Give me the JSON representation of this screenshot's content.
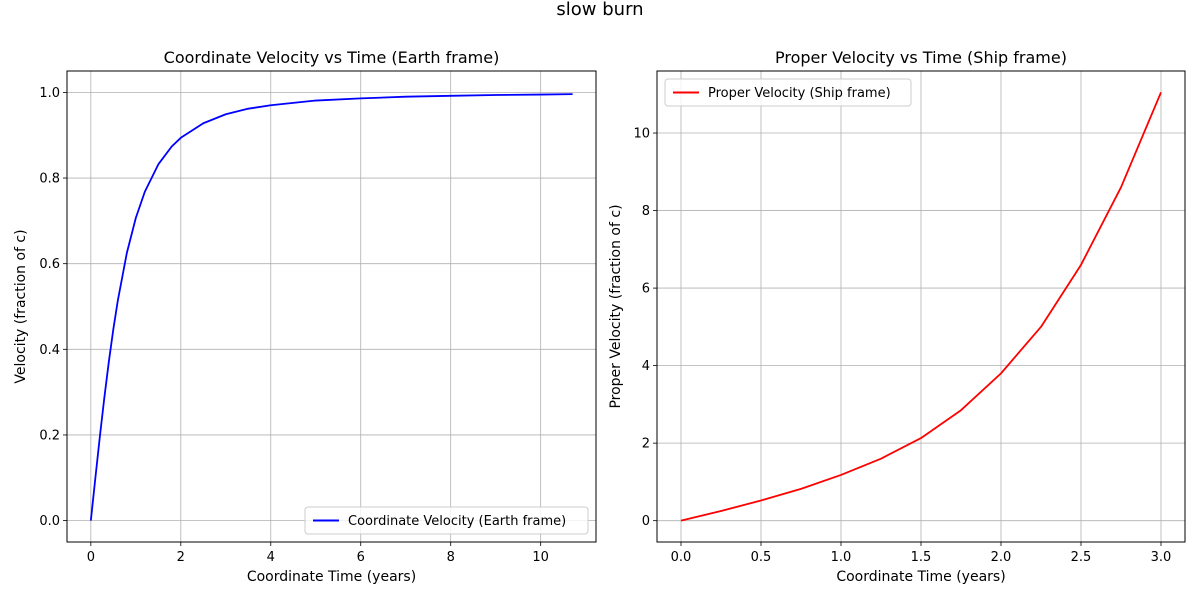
{
  "figure": {
    "title": "slow burn"
  },
  "chart_data": [
    {
      "type": "line",
      "title": "Coordinate Velocity vs Time (Earth frame)",
      "xlabel": "Coordinate Time (years)",
      "ylabel": "Velocity (fraction of c)",
      "xlim": [
        -0.53,
        11.23
      ],
      "ylim": [
        -0.05,
        1.05
      ],
      "xticks": [
        0,
        2,
        4,
        6,
        8,
        10
      ],
      "yticks": [
        0.0,
        0.2,
        0.4,
        0.6,
        0.8,
        1.0
      ],
      "xtick_labels": [
        "0",
        "2",
        "4",
        "6",
        "8",
        "10"
      ],
      "ytick_labels": [
        "0.0",
        "0.2",
        "0.4",
        "0.6",
        "0.8",
        "1.0"
      ],
      "grid": true,
      "legend_position": "lower-right",
      "series": [
        {
          "name": "Coordinate Velocity (Earth frame)",
          "color": "#0000ff",
          "x": [
            0,
            0.1,
            0.2,
            0.3,
            0.4,
            0.5,
            0.6,
            0.8,
            1.0,
            1.2,
            1.5,
            1.8,
            2.0,
            2.5,
            3.0,
            3.5,
            4.0,
            5.0,
            6.0,
            7.0,
            8.0,
            9.0,
            10.0,
            10.71
          ],
          "y": [
            0.0,
            0.099,
            0.196,
            0.287,
            0.371,
            0.447,
            0.514,
            0.625,
            0.707,
            0.768,
            0.832,
            0.874,
            0.894,
            0.928,
            0.949,
            0.962,
            0.97,
            0.981,
            0.986,
            0.99,
            0.992,
            0.994,
            0.995,
            0.996
          ]
        }
      ]
    },
    {
      "type": "line",
      "title": "Proper Velocity vs Time (Ship frame)",
      "xlabel": "Coordinate Time (years)",
      "ylabel": "Proper Velocity (fraction of c)",
      "xlim": [
        -0.15,
        3.15
      ],
      "ylim": [
        -0.55,
        11.6
      ],
      "xticks": [
        0.0,
        0.5,
        1.0,
        1.5,
        2.0,
        2.5,
        3.0
      ],
      "yticks": [
        0,
        2,
        4,
        6,
        8,
        10
      ],
      "xtick_labels": [
        "0.0",
        "0.5",
        "1.0",
        "1.5",
        "2.0",
        "2.5",
        "3.0"
      ],
      "ytick_labels": [
        "0",
        "2",
        "4",
        "6",
        "8",
        "10"
      ],
      "grid": true,
      "legend_position": "upper-left",
      "series": [
        {
          "name": "Proper Velocity (Ship frame)",
          "color": "#ff0000",
          "x": [
            0,
            0.25,
            0.5,
            0.75,
            1.0,
            1.25,
            1.5,
            1.75,
            2.0,
            2.25,
            2.5,
            2.75,
            3.0
          ],
          "y": [
            0.0,
            0.25,
            0.52,
            0.82,
            1.18,
            1.6,
            2.13,
            2.85,
            3.8,
            5.0,
            6.6,
            8.6,
            11.05
          ]
        }
      ]
    }
  ]
}
